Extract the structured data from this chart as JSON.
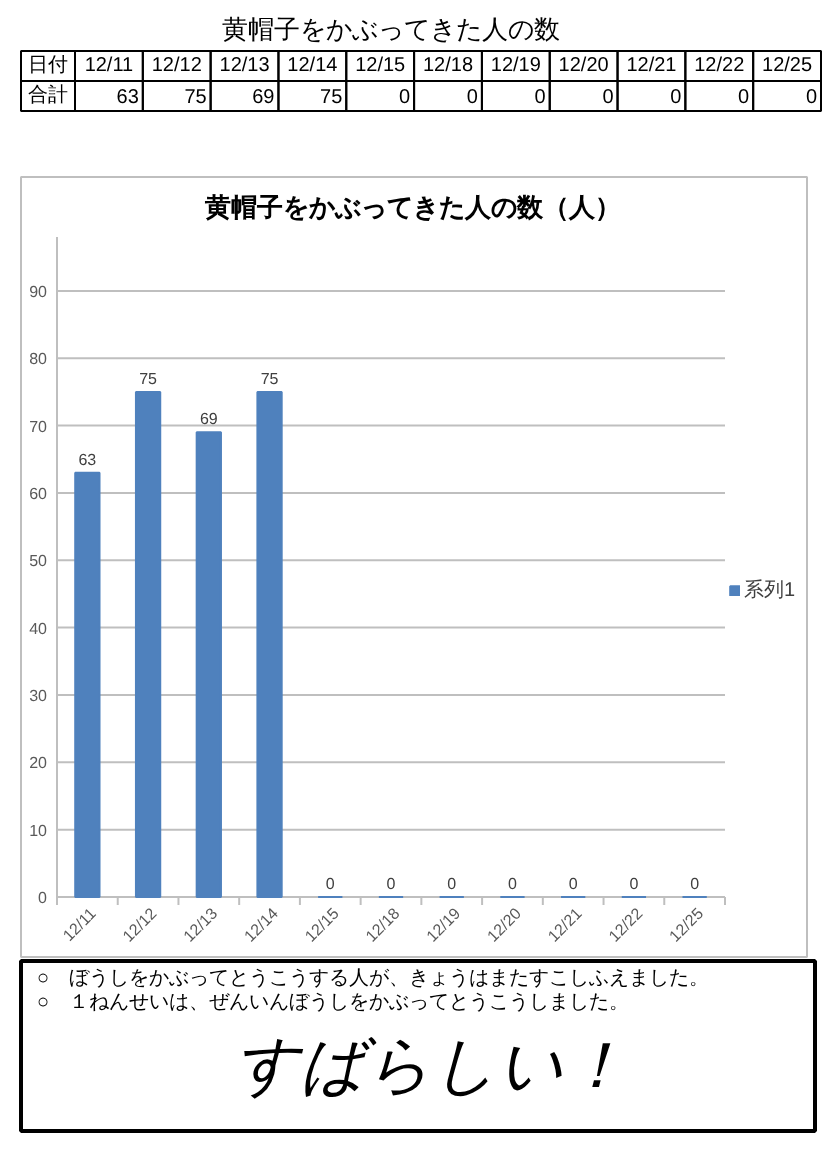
{
  "chart_data": [
    {
      "type": "other",
      "title": "黄帽子をかぶってきた人の数",
      "categories": [
        "12/11",
        "12/12",
        "12/13",
        "12/14",
        "12/15",
        "12/18",
        "12/19",
        "12/20",
        "12/21",
        "12/22",
        "12/25"
      ],
      "values": [
        63,
        75,
        69,
        75,
        0,
        0,
        0,
        0,
        0,
        0,
        0
      ],
      "data_labels": true,
      "annotations": [
        "日付",
        "合計"
      ]
    },
    {
      "type": "bar",
      "title": "黄帽子をかぶってきた人の数（人）",
      "categories": [
        "12/11",
        "12/12",
        "12/13",
        "12/14",
        "12/15",
        "12/18",
        "12/19",
        "12/20",
        "12/21",
        "12/22",
        "12/25"
      ],
      "series": [
        {
          "name": "系列1",
          "color": "#4f81bd",
          "values": [
            63,
            75,
            69,
            75,
            0,
            0,
            0,
            0,
            0,
            0,
            0
          ]
        }
      ],
      "ylim": [
        0,
        98
      ],
      "yticks": [
        0,
        10,
        20,
        30,
        40,
        50,
        60,
        70,
        80,
        90
      ],
      "grid": "y",
      "legend": "right",
      "data_labels": true,
      "annotations": [
        "○　ぼうしをかぶってとうこうする人が、きょうはまたすこしふえました。",
        "○　１ねんせいは、ぜんいんぼうしをかぶってとうこうしました。",
        "すばらしい！"
      ]
    }
  ]
}
